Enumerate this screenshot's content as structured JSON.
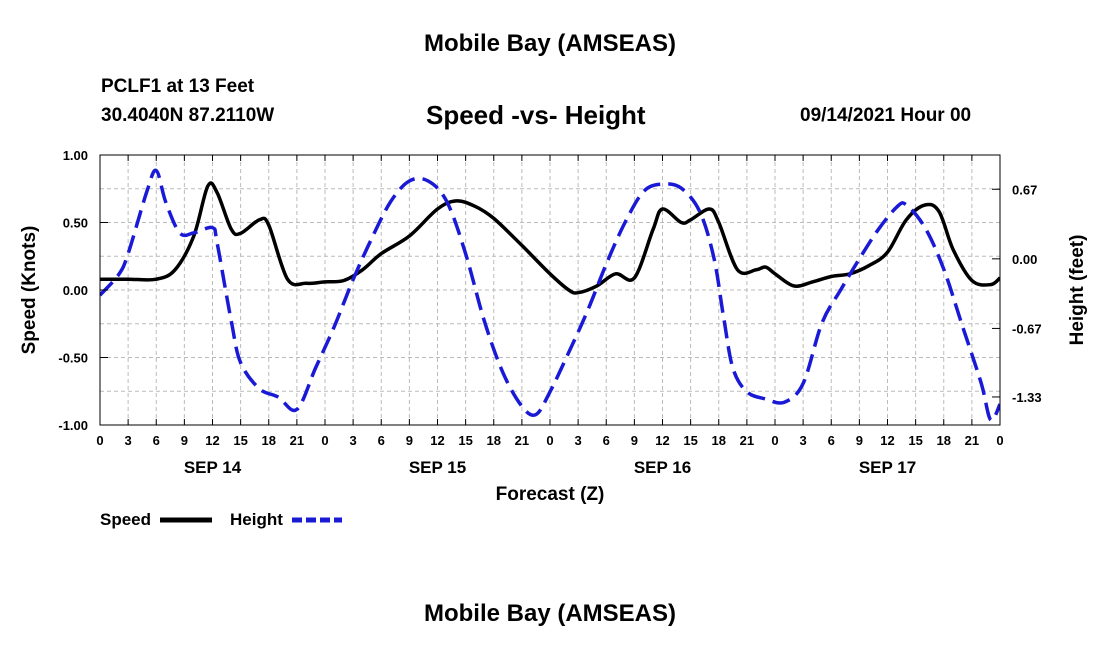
{
  "page": {
    "title_top": "Mobile Bay (AMSEAS)",
    "title_bottom": "Mobile Bay (AMSEAS)",
    "station": "PCLF1 at 13 Feet",
    "coords": "30.4040N  87.2110W",
    "datetime": "09/14/2021 Hour 00",
    "legend": {
      "speed_label": "Speed",
      "height_label": "Height"
    }
  },
  "chart_data": {
    "type": "line",
    "title": "Speed -vs- Height",
    "xlabel": "Forecast (Z)",
    "ylabel_left": "Speed (Knots)",
    "ylabel_right": "Height (feet)",
    "x_tick_labels": [
      "0",
      "3",
      "6",
      "9",
      "12",
      "15",
      "18",
      "21",
      "0",
      "3",
      "6",
      "9",
      "12",
      "15",
      "18",
      "21",
      "0",
      "3",
      "6",
      "9",
      "12",
      "15",
      "18",
      "21",
      "0",
      "3",
      "6",
      "9",
      "12",
      "15",
      "18",
      "21",
      "0"
    ],
    "day_labels": [
      {
        "label": "SEP 14",
        "hour": 12
      },
      {
        "label": "SEP 15",
        "hour": 36
      },
      {
        "label": "SEP 16",
        "hour": 60
      },
      {
        "label": "SEP 17",
        "hour": 84
      }
    ],
    "xlim": [
      0,
      96
    ],
    "ylim_left": [
      -1.0,
      1.0
    ],
    "y_left_ticks": [
      1.0,
      0.5,
      0.0,
      -0.5,
      -1.0
    ],
    "y_left_tick_labels": [
      "1.00",
      "0.50",
      "0.00",
      "-0.50",
      "-1.00"
    ],
    "ylim_right": [
      -1.6,
      1.0
    ],
    "y_right_ticks": [
      0.67,
      0.0,
      -0.67,
      -1.33
    ],
    "y_right_tick_labels": [
      "0.67",
      "0.00",
      "-0.67",
      "-1.33"
    ],
    "grid": true,
    "legend_position": "bottom-left",
    "colors": {
      "speed": "#000000",
      "height": "#1a1ad6",
      "grid": "#bbbbbb"
    },
    "series": [
      {
        "name": "Speed",
        "axis": "left",
        "style": "solid",
        "points": [
          [
            0,
            0.08
          ],
          [
            3,
            0.08
          ],
          [
            6,
            0.08
          ],
          [
            8,
            0.15
          ],
          [
            10,
            0.4
          ],
          [
            11.5,
            0.77
          ],
          [
            12.5,
            0.72
          ],
          [
            14,
            0.45
          ],
          [
            15,
            0.42
          ],
          [
            17,
            0.52
          ],
          [
            18,
            0.48
          ],
          [
            20,
            0.08
          ],
          [
            22,
            0.05
          ],
          [
            24,
            0.06
          ],
          [
            26,
            0.07
          ],
          [
            28,
            0.15
          ],
          [
            30,
            0.27
          ],
          [
            33,
            0.4
          ],
          [
            36,
            0.6
          ],
          [
            38,
            0.66
          ],
          [
            40,
            0.62
          ],
          [
            42,
            0.53
          ],
          [
            45,
            0.33
          ],
          [
            48,
            0.12
          ],
          [
            50,
            0.0
          ],
          [
            51,
            -0.02
          ],
          [
            53,
            0.03
          ],
          [
            55,
            0.12
          ],
          [
            57,
            0.09
          ],
          [
            59,
            0.45
          ],
          [
            60,
            0.6
          ],
          [
            62,
            0.5
          ],
          [
            63,
            0.52
          ],
          [
            65,
            0.6
          ],
          [
            66,
            0.5
          ],
          [
            68,
            0.15
          ],
          [
            70,
            0.15
          ],
          [
            71,
            0.17
          ],
          [
            72,
            0.12
          ],
          [
            74,
            0.03
          ],
          [
            76,
            0.06
          ],
          [
            78,
            0.1
          ],
          [
            80,
            0.12
          ],
          [
            82,
            0.18
          ],
          [
            84,
            0.28
          ],
          [
            86,
            0.52
          ],
          [
            88,
            0.63
          ],
          [
            89.5,
            0.58
          ],
          [
            91,
            0.3
          ],
          [
            93,
            0.07
          ],
          [
            95,
            0.04
          ],
          [
            96,
            0.09
          ]
        ]
      },
      {
        "name": "Height",
        "axis": "right",
        "style": "dashed",
        "points": [
          [
            0,
            -0.35
          ],
          [
            2,
            -0.15
          ],
          [
            3,
            0.05
          ],
          [
            5,
            0.65
          ],
          [
            6,
            0.85
          ],
          [
            7,
            0.55
          ],
          [
            8.5,
            0.25
          ],
          [
            10,
            0.25
          ],
          [
            12,
            0.3
          ],
          [
            12.5,
            0.15
          ],
          [
            14,
            -0.6
          ],
          [
            15,
            -1.0
          ],
          [
            17,
            -1.25
          ],
          [
            19,
            -1.33
          ],
          [
            21,
            -1.45
          ],
          [
            23,
            -1.05
          ],
          [
            25,
            -0.65
          ],
          [
            27,
            -0.2
          ],
          [
            29,
            0.2
          ],
          [
            31,
            0.55
          ],
          [
            33,
            0.75
          ],
          [
            35,
            0.75
          ],
          [
            37,
            0.55
          ],
          [
            39,
            0.05
          ],
          [
            41,
            -0.6
          ],
          [
            43,
            -1.1
          ],
          [
            45,
            -1.42
          ],
          [
            46.5,
            -1.5
          ],
          [
            48,
            -1.28
          ],
          [
            50,
            -0.9
          ],
          [
            52,
            -0.5
          ],
          [
            54,
            -0.05
          ],
          [
            56,
            0.35
          ],
          [
            58,
            0.65
          ],
          [
            60,
            0.72
          ],
          [
            62,
            0.68
          ],
          [
            64,
            0.45
          ],
          [
            65.5,
            0.0
          ],
          [
            66.5,
            -0.55
          ],
          [
            67.5,
            -1.05
          ],
          [
            69,
            -1.28
          ],
          [
            71,
            -1.35
          ],
          [
            73,
            -1.38
          ],
          [
            75,
            -1.2
          ],
          [
            77,
            -0.62
          ],
          [
            79,
            -0.3
          ],
          [
            81,
            0.0
          ],
          [
            83,
            0.28
          ],
          [
            85,
            0.5
          ],
          [
            86,
            0.52
          ],
          [
            88,
            0.3
          ],
          [
            90,
            -0.1
          ],
          [
            92,
            -0.65
          ],
          [
            94,
            -1.2
          ],
          [
            95,
            -1.55
          ],
          [
            96,
            -1.4
          ]
        ]
      }
    ]
  }
}
